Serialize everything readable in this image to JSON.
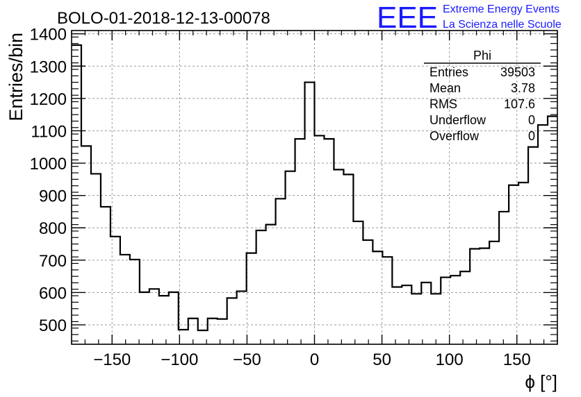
{
  "brand": {
    "logo_text": "EEE",
    "line1": "Extreme Energy Events",
    "line2": "La Scienza nelle Scuole",
    "color": "#1a1aff"
  },
  "stats": {
    "title": "Phi",
    "rows": [
      {
        "label": "Entries",
        "value": "39503"
      },
      {
        "label": "Mean",
        "value": "3.78"
      },
      {
        "label": "RMS",
        "value": "107.6"
      },
      {
        "label": "Underflow",
        "value": "0"
      },
      {
        "label": "Overflow",
        "value": "0"
      }
    ]
  },
  "chart_data": {
    "type": "histogram",
    "title": "BOLO-01-2018-12-13-00078",
    "xlabel": "ϕ [°]",
    "ylabel": "Entries/bin",
    "xlim": [
      -180,
      180
    ],
    "ylim": [
      440,
      1410
    ],
    "grid": true,
    "bin_width": 7.2,
    "xticks": [
      -150,
      -100,
      -50,
      0,
      50,
      100,
      150
    ],
    "xtick_labels": [
      "−150",
      "−100",
      "−50",
      "0",
      "50",
      "100",
      "150"
    ],
    "yticks": [
      500,
      600,
      700,
      800,
      900,
      1000,
      1100,
      1200,
      1300,
      1400
    ],
    "ytick_labels": [
      "500",
      "600",
      "700",
      "800",
      "900",
      "1000",
      "1100",
      "1200",
      "1300",
      "1400"
    ],
    "bin_edges": [
      -180,
      -172.8,
      -165.6,
      -158.4,
      -151.2,
      -144,
      -136.8,
      -129.6,
      -122.4,
      -115.2,
      -108,
      -100.8,
      -93.6,
      -86.4,
      -79.2,
      -72,
      -64.8,
      -57.6,
      -50.4,
      -43.2,
      -36,
      -28.8,
      -21.6,
      -14.4,
      -7.2,
      0,
      7.2,
      14.4,
      21.6,
      28.8,
      36,
      43.2,
      50.4,
      57.6,
      64.8,
      72,
      79.2,
      86.4,
      93.6,
      100.8,
      108,
      115.2,
      122.4,
      129.6,
      136.8,
      144,
      151.2,
      158.4,
      165.6,
      172.8,
      180
    ],
    "counts": [
      1365,
      1053,
      967,
      865,
      773,
      717,
      702,
      601,
      611,
      590,
      601,
      485,
      520,
      483,
      520,
      518,
      583,
      604,
      722,
      792,
      810,
      890,
      975,
      1075,
      1250,
      1085,
      1075,
      980,
      965,
      820,
      762,
      727,
      710,
      617,
      622,
      596,
      631,
      596,
      647,
      652,
      665,
      735,
      737,
      758,
      850,
      932,
      940,
      1050,
      1118,
      1145
    ]
  }
}
